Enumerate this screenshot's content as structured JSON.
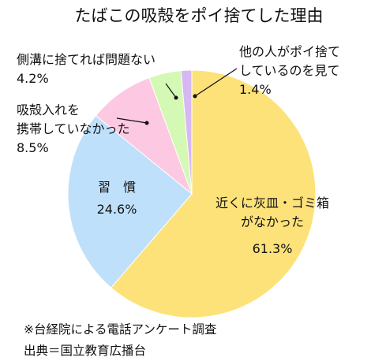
{
  "chart_data": {
    "type": "pie",
    "title": "たばこの吸殻をポイ捨てした理由",
    "slices": [
      {
        "lines": [
          "近くに灰皿・ゴミ箱",
          "がなかった"
        ],
        "pct_label": "61.3%",
        "value": 61.3,
        "color": "#fde27a"
      },
      {
        "lines": [
          "習　慣"
        ],
        "pct_label": "24.6%",
        "value": 24.6,
        "color": "#bfe0fb"
      },
      {
        "lines": [
          "吸殻入れを",
          "携帯していなかった"
        ],
        "pct_label": "8.5%",
        "value": 8.5,
        "color": "#fcc8e2"
      },
      {
        "lines": [
          "側溝に捨てれば問題ない"
        ],
        "pct_label": "4.2%",
        "value": 4.2,
        "color": "#d4f9b4"
      },
      {
        "lines": [
          "他の人がポイ捨て",
          "しているのを見て"
        ],
        "pct_label": "1.4%",
        "value": 1.4,
        "color": "#d6b8f2"
      }
    ]
  },
  "notes": {
    "survey": "※台経院による電話アンケート調査",
    "source": "出典＝国立教育広播台"
  }
}
